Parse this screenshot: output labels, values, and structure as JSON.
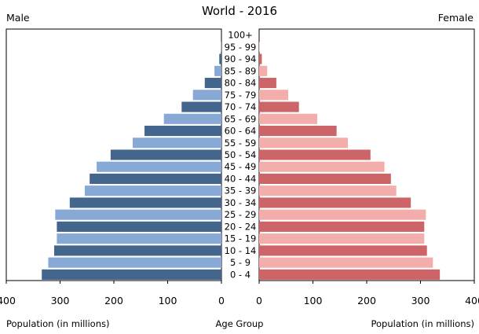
{
  "chart_data": {
    "type": "bar",
    "title": "World - 2016",
    "left_label": "Male",
    "right_label": "Female",
    "xlabel_left": "Population (in millions)",
    "xlabel_center": "Age Group",
    "xlabel_right": "Population (in millions)",
    "xlim": [
      0,
      400
    ],
    "ticks_left": [
      "400",
      "300",
      "200",
      "100",
      "0"
    ],
    "ticks_right": [
      "0",
      "100",
      "200",
      "300",
      "400"
    ],
    "categories": [
      "100+",
      "95 - 99",
      "90 - 94",
      "85 - 89",
      "80 - 84",
      "75 - 79",
      "70 - 74",
      "65 - 69",
      "60 - 64",
      "55 - 59",
      "50 - 54",
      "45 - 49",
      "40 - 44",
      "35 - 39",
      "30 - 34",
      "25 - 29",
      "20 - 24",
      "15 - 19",
      "10 - 14",
      "5 - 9",
      "0 - 4"
    ],
    "series": [
      {
        "name": "Male",
        "values": [
          0,
          0.5,
          4,
          13,
          31,
          53,
          74,
          107,
          143,
          165,
          206,
          232,
          245,
          254,
          282,
          309,
          306,
          306,
          311,
          322,
          334
        ]
      },
      {
        "name": "Female",
        "values": [
          0,
          0.8,
          5,
          15,
          32,
          54,
          74,
          108,
          144,
          165,
          207,
          233,
          245,
          255,
          282,
          310,
          307,
          307,
          312,
          323,
          336
        ]
      }
    ],
    "colors": {
      "male_dark": "#44658c",
      "male_light": "#88a9d6",
      "female_dark": "#cd6568",
      "female_light": "#f3aeac"
    }
  }
}
